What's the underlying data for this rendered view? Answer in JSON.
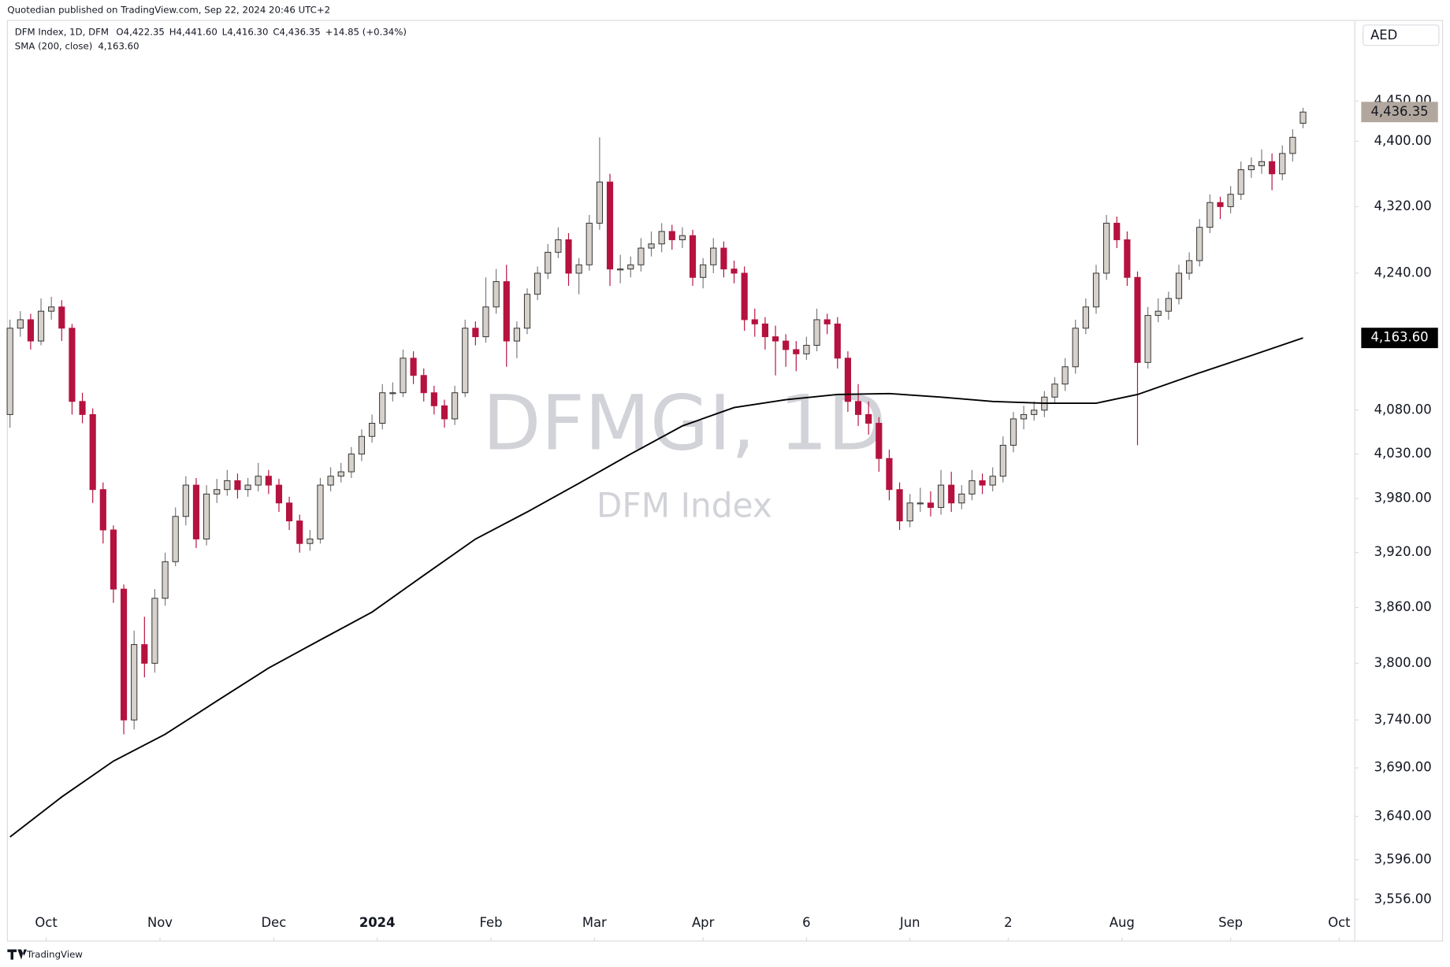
{
  "chart_data": {
    "type": "candlestick",
    "publisher_note": "Quotedian published on TradingView.com, Sep 22, 2024 20:46 UTC+2",
    "title": "DFM Index, 1D, DFM",
    "ohlc_legend": [
      "O4,422.35",
      "H4,441.60",
      "L4,416.30",
      "C4,436.35",
      "+14.85 (+0.34%)"
    ],
    "currency": "AED",
    "watermark": [
      "DFMGI, 1D",
      "DFM Index"
    ],
    "footer": "TradingView",
    "log_scale": true,
    "grid": false,
    "up_color": "#d6d1cb",
    "down_color": "#b5123f",
    "ylim": [
      3547,
      4552
    ],
    "yticks": [
      {
        "value": 4450,
        "label": "4,450.00"
      },
      {
        "value": 4400,
        "label": "4,400.00"
      },
      {
        "value": 4320,
        "label": "4,320.00"
      },
      {
        "value": 4240,
        "label": "4,240.00"
      },
      {
        "value": 4080,
        "label": "4,080.00"
      },
      {
        "value": 4030,
        "label": "4,030.00"
      },
      {
        "value": 3980,
        "label": "3,980.00"
      },
      {
        "value": 3920,
        "label": "3,920.00"
      },
      {
        "value": 3860,
        "label": "3,860.00"
      },
      {
        "value": 3800,
        "label": "3,800.00"
      },
      {
        "value": 3740,
        "label": "3,740.00"
      },
      {
        "value": 3690,
        "label": "3,690.00"
      },
      {
        "value": 3640,
        "label": "3,640.00"
      },
      {
        "value": 3596,
        "label": "3,596.00"
      },
      {
        "value": 3556,
        "label": "3,556.00"
      }
    ],
    "xlim": [
      -0.5,
      260
    ],
    "xticks": [
      {
        "value": 7,
        "label": "Oct"
      },
      {
        "value": 29,
        "label": "Nov"
      },
      {
        "value": 51,
        "label": "Dec"
      },
      {
        "value": 71,
        "label": "2024"
      },
      {
        "value": 93,
        "label": "Feb"
      },
      {
        "value": 113,
        "label": "Mar"
      },
      {
        "value": 134,
        "label": "Apr"
      },
      {
        "value": 154,
        "label": "6"
      },
      {
        "value": 174,
        "label": "Jun"
      },
      {
        "value": 193,
        "label": "2"
      },
      {
        "value": 215,
        "label": "Aug"
      },
      {
        "value": 236,
        "label": "Sep"
      },
      {
        "value": 257,
        "label": "Oct"
      }
    ],
    "x": [
      0,
      2,
      4,
      6,
      8,
      10,
      12,
      14,
      16,
      18,
      20,
      22,
      24,
      26,
      28,
      30,
      32,
      34,
      36,
      38,
      40,
      42,
      44,
      46,
      48,
      50,
      52,
      54,
      56,
      58,
      60,
      62,
      64,
      66,
      68,
      70,
      72,
      74,
      76,
      78,
      80,
      82,
      84,
      86,
      88,
      90,
      92,
      94,
      96,
      98,
      100,
      102,
      104,
      106,
      108,
      110,
      112,
      114,
      116,
      118,
      120,
      122,
      124,
      126,
      128,
      130,
      132,
      134,
      136,
      138,
      140,
      142,
      144,
      146,
      148,
      150,
      152,
      154,
      156,
      158,
      160,
      162,
      164,
      166,
      168,
      170,
      172,
      174,
      176,
      178,
      180,
      182,
      184,
      186,
      188,
      190,
      192,
      194,
      196,
      198,
      200,
      202,
      204,
      206,
      208,
      210,
      212,
      214,
      216,
      218,
      220,
      222,
      224,
      226,
      228,
      230,
      232,
      234,
      236,
      238,
      240,
      242,
      244,
      246,
      248,
      250
    ],
    "candles": [
      [
        4075,
        4185,
        4060,
        4175
      ],
      [
        4175,
        4195,
        4165,
        4185
      ],
      [
        4185,
        4192,
        4150,
        4160
      ],
      [
        4160,
        4210,
        4155,
        4195
      ],
      [
        4195,
        4212,
        4185,
        4200
      ],
      [
        4200,
        4208,
        4160,
        4175
      ],
      [
        4175,
        4180,
        4075,
        4090
      ],
      [
        4090,
        4100,
        4065,
        4075
      ],
      [
        4075,
        4082,
        3975,
        3990
      ],
      [
        3990,
        3998,
        3930,
        3945
      ],
      [
        3945,
        3950,
        3865,
        3880
      ],
      [
        3880,
        3885,
        3725,
        3740
      ],
      [
        3740,
        3835,
        3730,
        3820
      ],
      [
        3820,
        3850,
        3785,
        3800
      ],
      [
        3800,
        3880,
        3790,
        3870
      ],
      [
        3870,
        3920,
        3862,
        3910
      ],
      [
        3910,
        3970,
        3905,
        3960
      ],
      [
        3960,
        4005,
        3950,
        3995
      ],
      [
        3995,
        4003,
        3925,
        3935
      ],
      [
        3935,
        3995,
        3928,
        3985
      ],
      [
        3985,
        4002,
        3975,
        3990
      ],
      [
        3990,
        4012,
        3983,
        4000
      ],
      [
        4000,
        4008,
        3980,
        3990
      ],
      [
        3990,
        4003,
        3982,
        3995
      ],
      [
        3995,
        4020,
        3988,
        4005
      ],
      [
        4005,
        4012,
        3985,
        3995
      ],
      [
        3995,
        4002,
        3965,
        3975
      ],
      [
        3975,
        3982,
        3945,
        3955
      ],
      [
        3955,
        3962,
        3920,
        3930
      ],
      [
        3930,
        3945,
        3922,
        3935
      ],
      [
        3935,
        4003,
        3930,
        3995
      ],
      [
        3995,
        4015,
        3988,
        4005
      ],
      [
        4005,
        4020,
        3998,
        4010
      ],
      [
        4010,
        4038,
        4003,
        4030
      ],
      [
        4030,
        4058,
        4022,
        4050
      ],
      [
        4050,
        4075,
        4043,
        4065
      ],
      [
        4065,
        4110,
        4058,
        4100
      ],
      [
        4100,
        4112,
        4090,
        4100
      ],
      [
        4100,
        4150,
        4095,
        4140
      ],
      [
        4140,
        4148,
        4110,
        4120
      ],
      [
        4120,
        4128,
        4090,
        4100
      ],
      [
        4100,
        4108,
        4075,
        4085
      ],
      [
        4085,
        4092,
        4060,
        4070
      ],
      [
        4070,
        4108,
        4063,
        4100
      ],
      [
        4100,
        4185,
        4095,
        4175
      ],
      [
        4175,
        4183,
        4155,
        4165
      ],
      [
        4165,
        4235,
        4158,
        4200
      ],
      [
        4200,
        4245,
        4192,
        4230
      ],
      [
        4230,
        4250,
        4130,
        4160
      ],
      [
        4160,
        4183,
        4140,
        4175
      ],
      [
        4175,
        4222,
        4168,
        4215
      ],
      [
        4215,
        4248,
        4208,
        4240
      ],
      [
        4240,
        4275,
        4233,
        4265
      ],
      [
        4265,
        4295,
        4258,
        4280
      ],
      [
        4280,
        4288,
        4225,
        4240
      ],
      [
        4240,
        4258,
        4215,
        4250
      ],
      [
        4250,
        4310,
        4243,
        4300
      ],
      [
        4300,
        4405,
        4292,
        4350
      ],
      [
        4350,
        4360,
        4225,
        4245
      ],
      [
        4245,
        4262,
        4228,
        4245
      ],
      [
        4245,
        4260,
        4235,
        4250
      ],
      [
        4250,
        4282,
        4242,
        4270
      ],
      [
        4270,
        4290,
        4260,
        4275
      ],
      [
        4275,
        4300,
        4265,
        4290
      ],
      [
        4290,
        4298,
        4268,
        4280
      ],
      [
        4280,
        4295,
        4270,
        4285
      ],
      [
        4285,
        4292,
        4225,
        4235
      ],
      [
        4235,
        4258,
        4222,
        4250
      ],
      [
        4250,
        4282,
        4240,
        4270
      ],
      [
        4270,
        4278,
        4235,
        4245
      ],
      [
        4245,
        4255,
        4228,
        4240
      ],
      [
        4240,
        4248,
        4172,
        4185
      ],
      [
        4185,
        4198,
        4165,
        4180
      ],
      [
        4180,
        4188,
        4150,
        4165
      ],
      [
        4165,
        4178,
        4120,
        4160
      ],
      [
        4160,
        4168,
        4130,
        4150
      ],
      [
        4150,
        4160,
        4125,
        4145
      ],
      [
        4145,
        4165,
        4138,
        4155
      ],
      [
        4155,
        4198,
        4148,
        4185
      ],
      [
        4185,
        4192,
        4168,
        4180
      ],
      [
        4180,
        4188,
        4128,
        4140
      ],
      [
        4140,
        4148,
        4078,
        4090
      ],
      [
        4090,
        4110,
        4062,
        4075
      ],
      [
        4075,
        4090,
        4052,
        4065
      ],
      [
        4065,
        4072,
        4010,
        4025
      ],
      [
        4025,
        4035,
        3978,
        3990
      ],
      [
        3990,
        3998,
        3945,
        3955
      ],
      [
        3955,
        3985,
        3948,
        3975
      ],
      [
        3975,
        3992,
        3965,
        3975
      ],
      [
        3975,
        3988,
        3960,
        3970
      ],
      [
        3970,
        4012,
        3962,
        3995
      ],
      [
        3995,
        4010,
        3965,
        3975
      ],
      [
        3975,
        3995,
        3968,
        3985
      ],
      [
        3985,
        4012,
        3978,
        4000
      ],
      [
        4000,
        4008,
        3985,
        3995
      ],
      [
        3995,
        4015,
        3988,
        4005
      ],
      [
        4005,
        4050,
        3998,
        4040
      ],
      [
        4040,
        4078,
        4032,
        4070
      ],
      [
        4070,
        4085,
        4058,
        4075
      ],
      [
        4075,
        4090,
        4068,
        4080
      ],
      [
        4080,
        4102,
        4072,
        4095
      ],
      [
        4095,
        4118,
        4088,
        4110
      ],
      [
        4110,
        4140,
        4102,
        4130
      ],
      [
        4130,
        4185,
        4122,
        4175
      ],
      [
        4175,
        4210,
        4168,
        4200
      ],
      [
        4200,
        4250,
        4192,
        4240
      ],
      [
        4240,
        4310,
        4232,
        4300
      ],
      [
        4300,
        4308,
        4270,
        4280
      ],
      [
        4280,
        4290,
        4225,
        4235
      ],
      [
        4235,
        4242,
        4040,
        4135
      ],
      [
        4135,
        4200,
        4128,
        4190
      ],
      [
        4190,
        4210,
        4182,
        4195
      ],
      [
        4195,
        4218,
        4185,
        4210
      ],
      [
        4210,
        4250,
        4203,
        4240
      ],
      [
        4240,
        4265,
        4232,
        4255
      ],
      [
        4255,
        4305,
        4248,
        4295
      ],
      [
        4295,
        4335,
        4288,
        4325
      ],
      [
        4325,
        4332,
        4305,
        4320
      ],
      [
        4320,
        4345,
        4312,
        4335
      ],
      [
        4335,
        4375,
        4328,
        4365
      ],
      [
        4365,
        4380,
        4355,
        4370
      ],
      [
        4370,
        4390,
        4360,
        4375
      ],
      [
        4375,
        4385,
        4340,
        4360
      ],
      [
        4360,
        4395,
        4352,
        4385
      ],
      [
        4385,
        4415,
        4375,
        4405
      ],
      [
        4422.35,
        4441.6,
        4416.3,
        4436.35
      ]
    ],
    "sma": {
      "name": "SMA (200, close)",
      "value_label": "4,163.60",
      "color": "#000000",
      "x": [
        0,
        10,
        20,
        30,
        40,
        50,
        60,
        70,
        80,
        90,
        100,
        110,
        120,
        130,
        140,
        150,
        160,
        170,
        180,
        190,
        200,
        210,
        218,
        230,
        240,
        250
      ],
      "values": [
        3619,
        3660,
        3697,
        3725,
        3760,
        3795,
        3825,
        3855,
        3895,
        3935,
        3965,
        3997,
        4030,
        4062,
        4083,
        4092,
        4098,
        4099,
        4095,
        4090,
        4088,
        4088,
        4098,
        4123,
        4143,
        4163.6
      ]
    },
    "price_badges": [
      {
        "value": 4436.35,
        "label": "4,436.35",
        "color": "#b2a79e",
        "text_color": "#131722"
      },
      {
        "value": 4163.6,
        "label": "4,163.60",
        "color": "#000000",
        "text_color": "#ffffff"
      }
    ]
  }
}
